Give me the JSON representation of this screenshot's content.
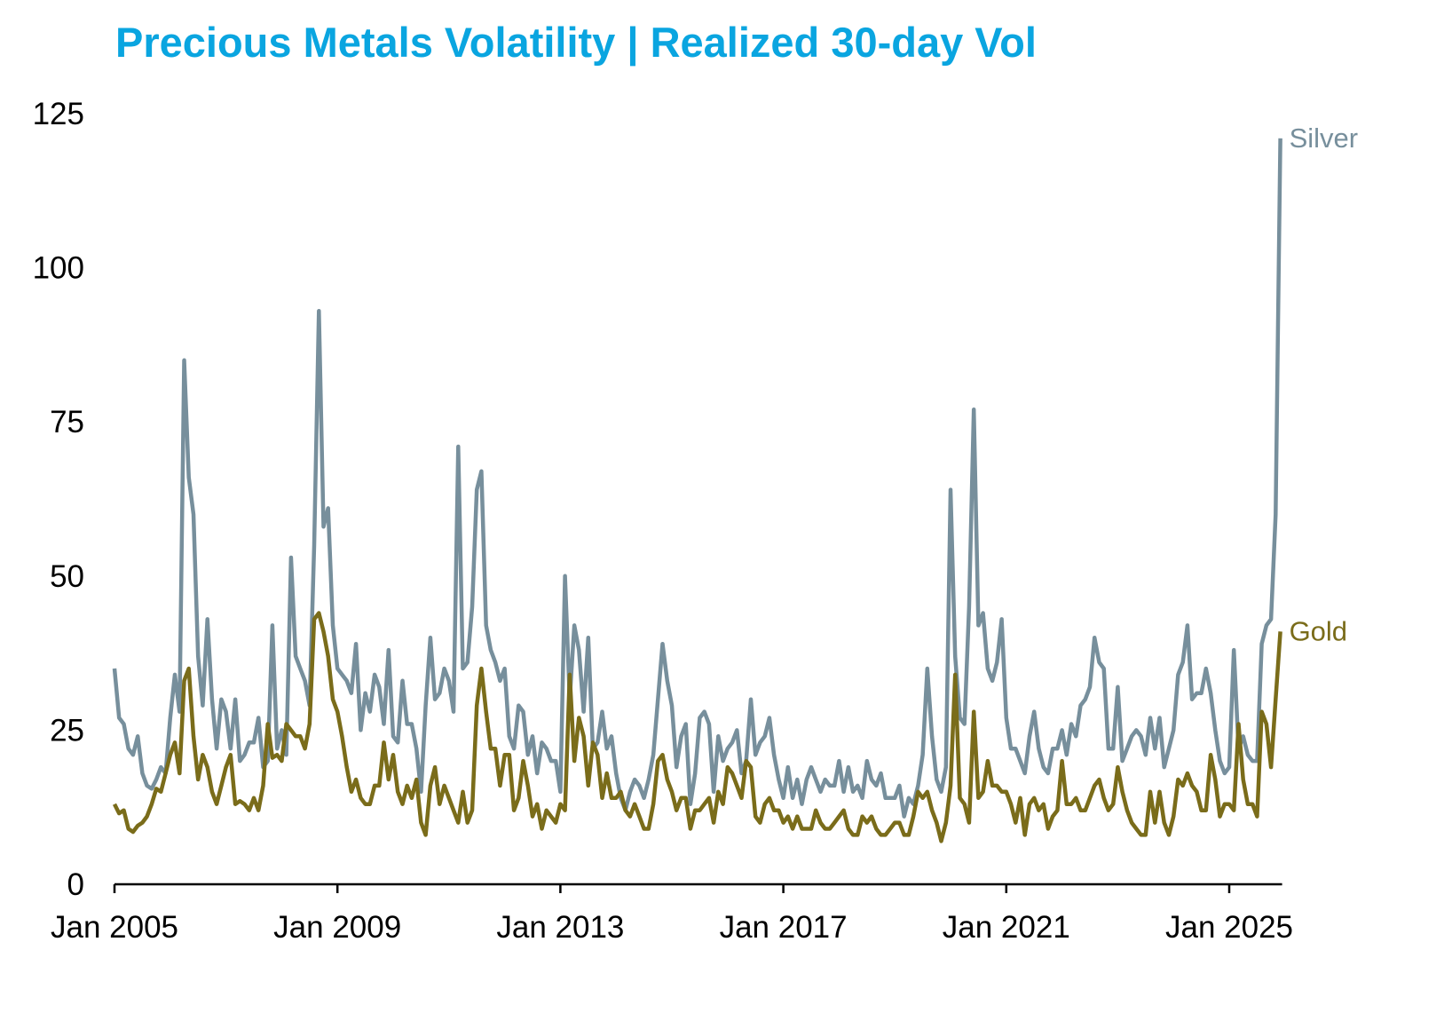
{
  "chart_data": {
    "type": "line",
    "title": "Precious Metals Volatility | Realized 30-day Vol",
    "xlabel": "",
    "ylabel": "",
    "ylim": [
      0,
      125
    ],
    "yticks": [
      "0",
      "25",
      "50",
      "75",
      "100",
      "125"
    ],
    "xticks": [
      "Jan 2005",
      "Jan 2009",
      "Jan 2013",
      "Jan 2017",
      "Jan 2021",
      "Jan 2025"
    ],
    "x_start": "2005-01",
    "x_frequency": "monthly",
    "grid": false,
    "legend": "inline labels at line ends (right)",
    "series": [
      {
        "name": "Silver",
        "color": "#778f9c",
        "values": [
          35,
          27,
          26,
          22,
          21,
          24,
          18,
          16,
          15.5,
          17,
          19,
          18,
          27,
          34,
          28,
          85,
          66,
          60,
          37,
          29,
          43,
          30,
          22,
          30,
          28,
          22,
          30,
          20,
          21,
          23,
          23,
          27,
          19,
          20,
          42,
          22,
          25,
          21,
          53,
          37,
          35,
          33,
          29,
          55,
          93,
          58,
          61,
          42,
          35,
          34,
          33,
          31,
          39,
          25,
          31,
          28,
          34,
          32,
          26,
          38,
          24,
          23,
          33,
          26,
          26,
          22,
          15,
          29,
          40,
          30,
          31,
          35,
          33,
          28,
          71,
          35,
          36,
          45,
          64,
          67,
          42,
          38,
          36,
          33,
          35,
          24,
          22,
          29,
          28,
          21,
          24,
          18,
          23,
          22,
          20,
          20,
          15,
          50,
          30,
          42,
          38,
          28,
          40,
          22,
          23,
          28,
          22,
          24,
          18,
          14,
          12,
          15,
          17,
          16,
          14,
          17,
          21,
          30,
          39,
          33,
          29,
          19,
          24,
          26,
          13,
          18,
          27,
          28,
          26,
          15,
          24,
          20,
          22,
          23,
          25,
          18,
          20,
          30,
          21,
          23,
          24,
          27,
          21,
          17,
          14,
          19,
          14,
          17,
          13,
          17,
          19,
          17,
          15,
          17,
          16,
          16,
          20,
          15,
          19,
          15,
          16,
          14,
          20,
          17,
          16,
          18,
          14,
          14,
          14,
          16,
          11,
          14,
          13,
          16,
          21,
          35,
          24,
          17,
          15,
          19,
          64,
          37,
          27,
          26,
          45,
          77,
          42,
          44,
          35,
          33,
          36,
          43,
          27,
          22,
          22,
          20,
          18,
          24,
          28,
          22,
          19,
          18,
          22,
          22,
          25,
          21,
          26,
          24,
          29,
          30,
          32,
          40,
          36,
          35,
          22,
          22,
          32,
          20,
          22,
          24,
          25,
          24,
          21,
          27,
          22,
          27,
          19,
          22,
          25,
          34,
          36,
          42,
          30,
          31,
          31,
          35,
          31,
          25,
          20,
          18,
          19,
          38,
          22,
          24,
          21,
          20,
          20,
          39,
          42,
          43,
          60,
          121
        ]
      },
      {
        "name": "Gold",
        "color": "#7a6c1a",
        "values": [
          13,
          11.5,
          12,
          9,
          8.5,
          9.5,
          10,
          11,
          13,
          15.5,
          15,
          18,
          21,
          23,
          18,
          33,
          35,
          24,
          17,
          21,
          19,
          15,
          13,
          16,
          19,
          21,
          13,
          13.5,
          13,
          12,
          14,
          12,
          16,
          26,
          20.5,
          21,
          20,
          26,
          25,
          24,
          24,
          22,
          26,
          43,
          44,
          41,
          37,
          30,
          28,
          24,
          19,
          15,
          17,
          14,
          13,
          13,
          16,
          16,
          23,
          17,
          21,
          15,
          13,
          16,
          14,
          17,
          10,
          8,
          16,
          19,
          13,
          16,
          14,
          12,
          10,
          15,
          10,
          12,
          29,
          35,
          28,
          22,
          22,
          16,
          21,
          21,
          12,
          14,
          20,
          16,
          11,
          13,
          9,
          12,
          11,
          10,
          13,
          12,
          34,
          20,
          27,
          24,
          16,
          23,
          21,
          14,
          18,
          14,
          14,
          15,
          12,
          11,
          13,
          11,
          9,
          9,
          13,
          20,
          21,
          17,
          15,
          12,
          14,
          14,
          9,
          12,
          12,
          13,
          14,
          10,
          15,
          13,
          19,
          18,
          16,
          14,
          20,
          19,
          11,
          10,
          13,
          14,
          12,
          12,
          10,
          11,
          9,
          11,
          9,
          9,
          9,
          12,
          10,
          9,
          9,
          10,
          11,
          12,
          9,
          8,
          8,
          11,
          10,
          11,
          9,
          8,
          8,
          9,
          10,
          10,
          8,
          8,
          11,
          15,
          14,
          15,
          12,
          10,
          7,
          10,
          16,
          34,
          14,
          13,
          10,
          28,
          14,
          15,
          20,
          16,
          16,
          15,
          15,
          13,
          10,
          14,
          8,
          13,
          14,
          12,
          13,
          9,
          11,
          12,
          20,
          13,
          13,
          14,
          12,
          12,
          14,
          16,
          17,
          14,
          12,
          13,
          19,
          15,
          12,
          10,
          9,
          8,
          8,
          15,
          10,
          15,
          10,
          8,
          11,
          17,
          16,
          18,
          16,
          15,
          12,
          12,
          21,
          17,
          11,
          13,
          13,
          12,
          26,
          17,
          13,
          13,
          11,
          28,
          26,
          19,
          30,
          41
        ]
      }
    ]
  }
}
